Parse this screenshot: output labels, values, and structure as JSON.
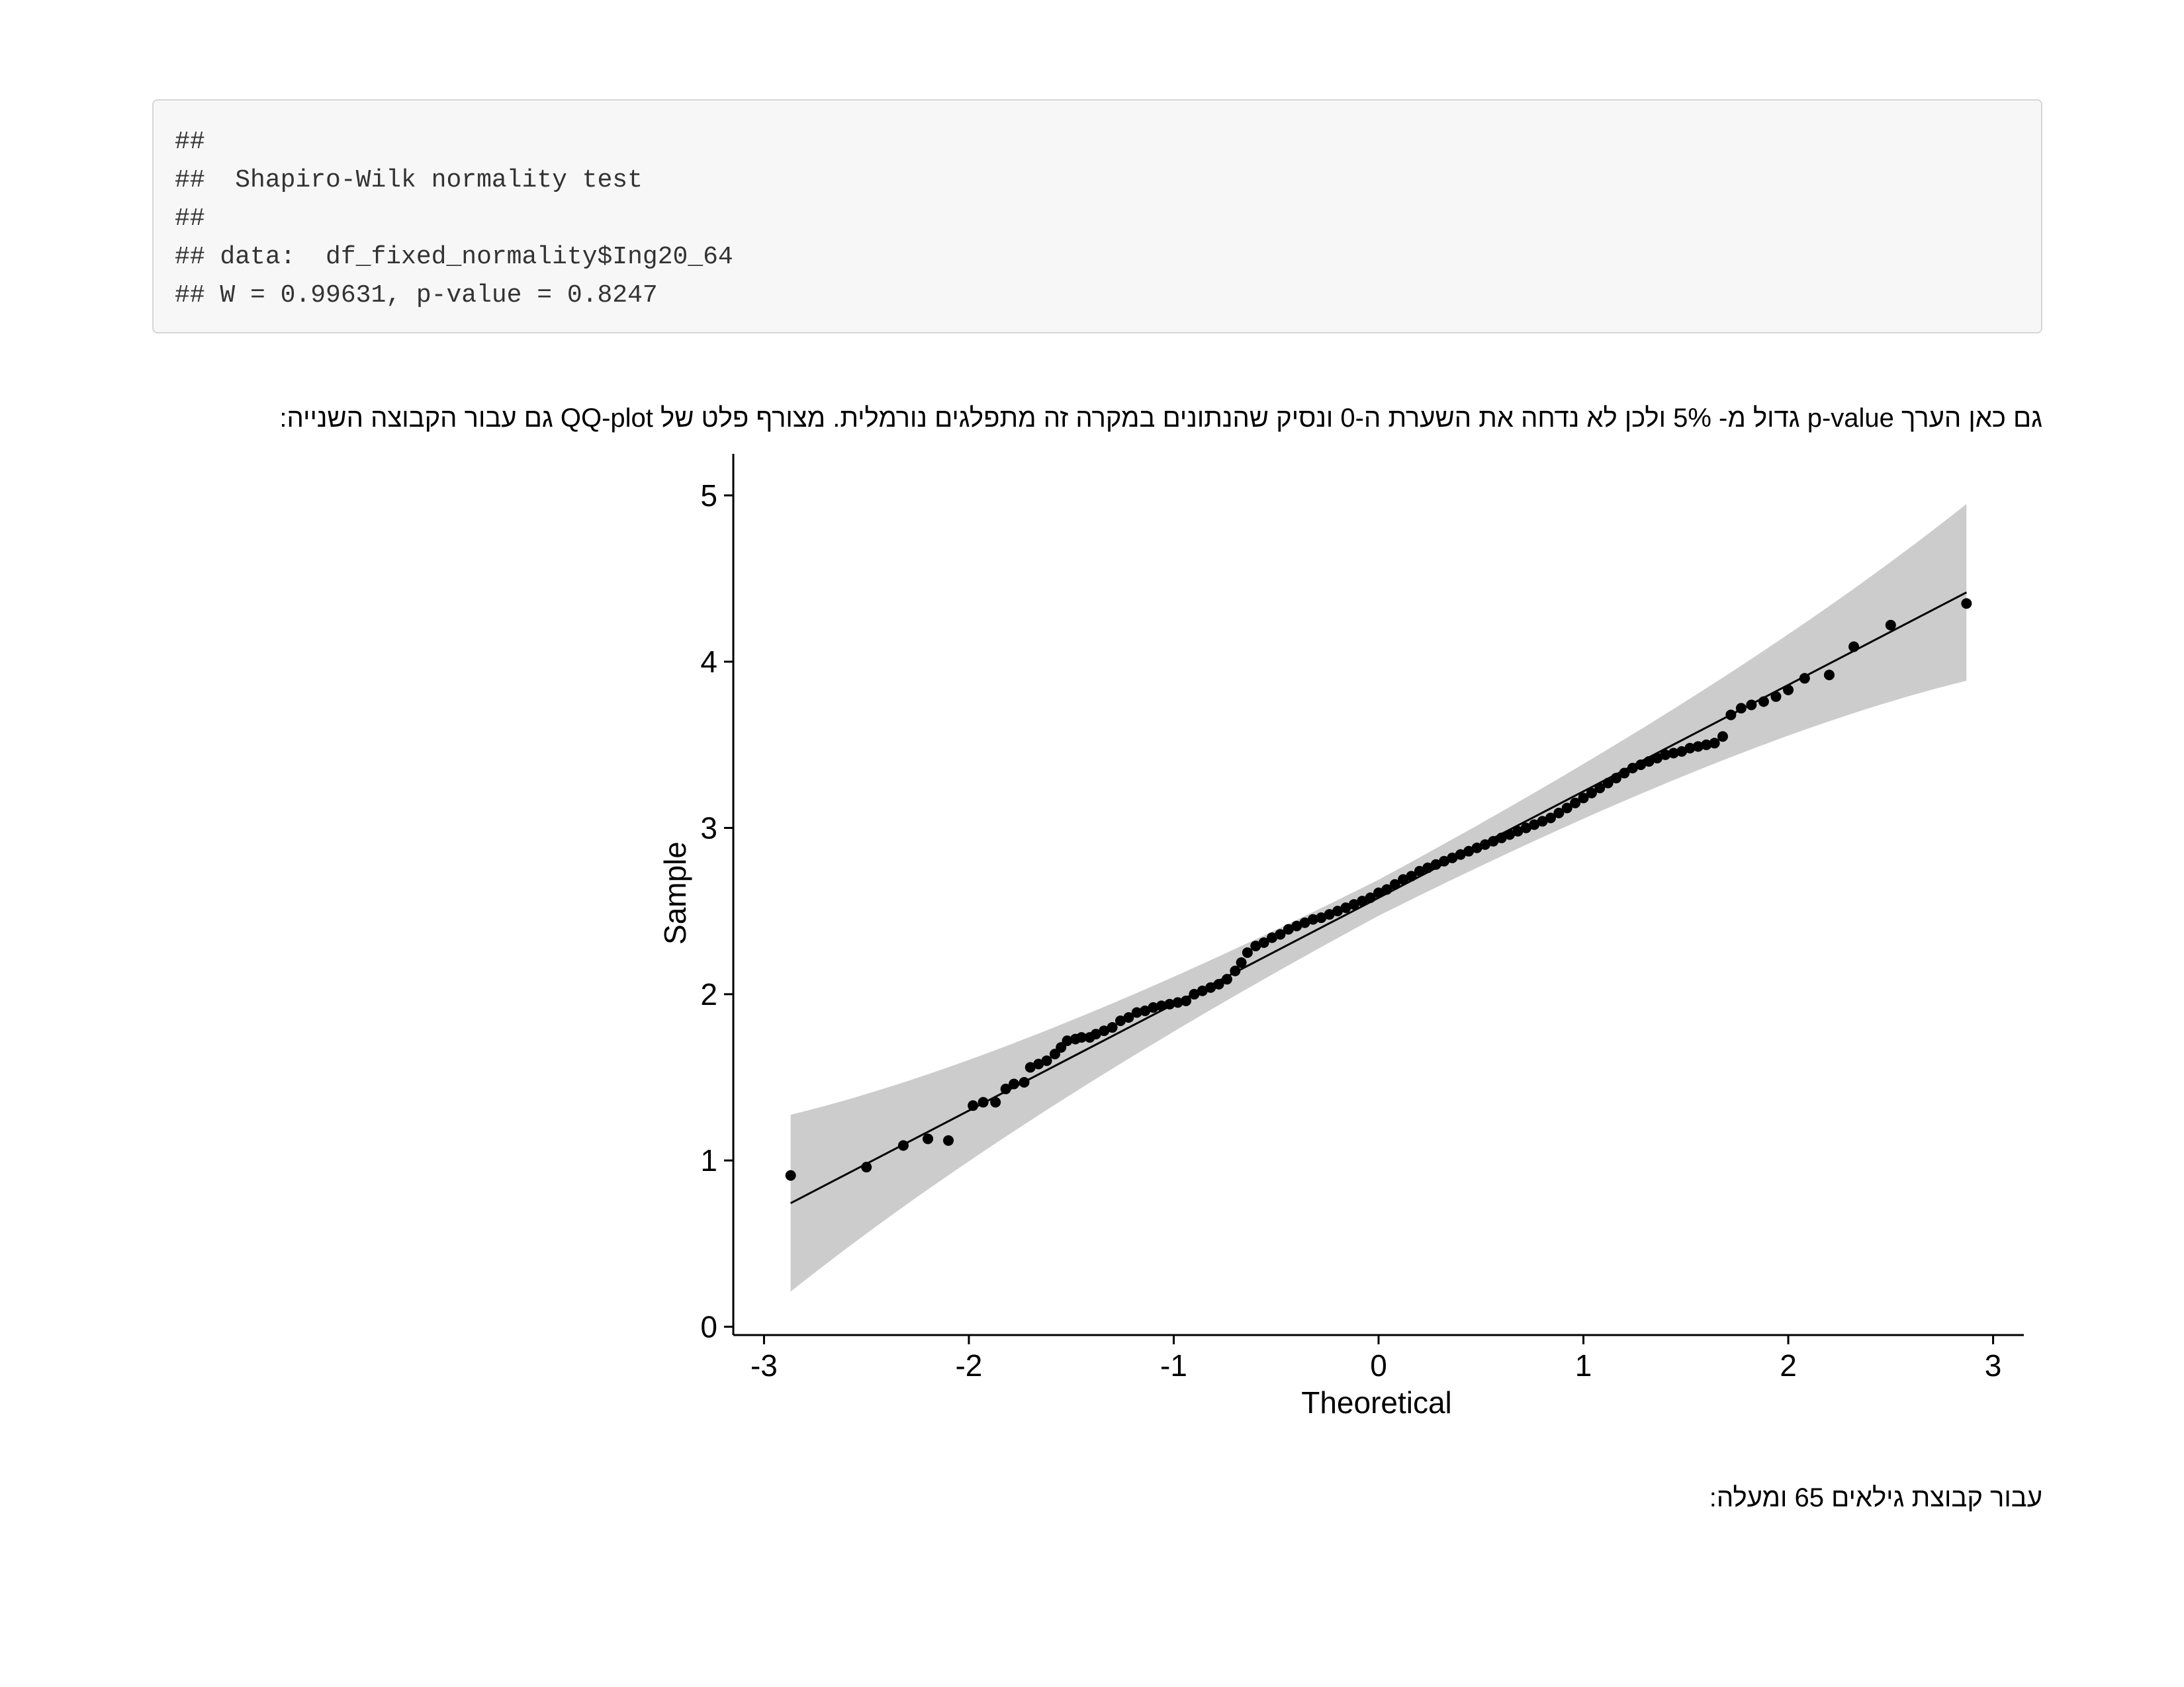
{
  "code_output": {
    "lines": [
      "##",
      "##  Shapiro-Wilk normality test",
      "##",
      "## data:  df_fixed_normality$Ing20_64",
      "## W = 0.99631, p-value = 0.8247"
    ]
  },
  "paragraphs": {
    "p1": "גם כאן הערך p-value גדול מ- 5% ולכן לא נדחה את השערת ה-0 ונסיק שהנתונים במקרה זה מתפלגים נורמלית. מצורף פלט של QQ-plot גם עבור הקבוצה השנייה:",
    "p2": "עבור קבוצת גילאים 65 ומעלה:"
  },
  "chart_data": {
    "type": "scatter",
    "subtype": "qq-plot",
    "title": "",
    "xlabel": "Theoretical",
    "ylabel": "Sample",
    "xlim": [
      -3.15,
      3.15
    ],
    "ylim": [
      -0.05,
      5.25
    ],
    "x_ticks": [
      "-3",
      "-2",
      "-1",
      "0",
      "1",
      "2",
      "3"
    ],
    "y_ticks": [
      "0",
      "1",
      "2",
      "3",
      "4",
      "5"
    ],
    "reference_line": {
      "intercept": 2.58,
      "slope": 0.64
    },
    "confidence_band_color": "#cccccc",
    "point_color": "#000000",
    "points": [
      [
        -2.87,
        0.91
      ],
      [
        -2.5,
        0.96
      ],
      [
        -2.32,
        1.09
      ],
      [
        -2.2,
        1.13
      ],
      [
        -2.1,
        1.12
      ],
      [
        -1.98,
        1.33
      ],
      [
        -1.93,
        1.35
      ],
      [
        -1.87,
        1.35
      ],
      [
        -1.82,
        1.43
      ],
      [
        -1.78,
        1.46
      ],
      [
        -1.73,
        1.47
      ],
      [
        -1.7,
        1.56
      ],
      [
        -1.66,
        1.58
      ],
      [
        -1.62,
        1.6
      ],
      [
        -1.58,
        1.64
      ],
      [
        -1.55,
        1.68
      ],
      [
        -1.52,
        1.72
      ],
      [
        -1.48,
        1.73
      ],
      [
        -1.45,
        1.74
      ],
      [
        -1.41,
        1.74
      ],
      [
        -1.38,
        1.76
      ],
      [
        -1.34,
        1.78
      ],
      [
        -1.3,
        1.8
      ],
      [
        -1.26,
        1.84
      ],
      [
        -1.22,
        1.86
      ],
      [
        -1.18,
        1.89
      ],
      [
        -1.14,
        1.9
      ],
      [
        -1.1,
        1.92
      ],
      [
        -1.06,
        1.93
      ],
      [
        -1.02,
        1.94
      ],
      [
        -0.98,
        1.95
      ],
      [
        -0.94,
        1.96
      ],
      [
        -0.9,
        2.0
      ],
      [
        -0.86,
        2.02
      ],
      [
        -0.82,
        2.04
      ],
      [
        -0.78,
        2.06
      ],
      [
        -0.74,
        2.09
      ],
      [
        -0.7,
        2.14
      ],
      [
        -0.67,
        2.19
      ],
      [
        -0.64,
        2.25
      ],
      [
        -0.6,
        2.29
      ],
      [
        -0.56,
        2.31
      ],
      [
        -0.52,
        2.34
      ],
      [
        -0.48,
        2.36
      ],
      [
        -0.44,
        2.39
      ],
      [
        -0.4,
        2.41
      ],
      [
        -0.36,
        2.43
      ],
      [
        -0.32,
        2.45
      ],
      [
        -0.28,
        2.46
      ],
      [
        -0.24,
        2.48
      ],
      [
        -0.2,
        2.5
      ],
      [
        -0.16,
        2.52
      ],
      [
        -0.12,
        2.54
      ],
      [
        -0.08,
        2.56
      ],
      [
        -0.04,
        2.58
      ],
      [
        0.0,
        2.61
      ],
      [
        0.04,
        2.63
      ],
      [
        0.08,
        2.66
      ],
      [
        0.12,
        2.69
      ],
      [
        0.16,
        2.71
      ],
      [
        0.2,
        2.74
      ],
      [
        0.24,
        2.76
      ],
      [
        0.28,
        2.78
      ],
      [
        0.32,
        2.8
      ],
      [
        0.36,
        2.82
      ],
      [
        0.4,
        2.84
      ],
      [
        0.44,
        2.86
      ],
      [
        0.48,
        2.88
      ],
      [
        0.52,
        2.9
      ],
      [
        0.56,
        2.92
      ],
      [
        0.6,
        2.94
      ],
      [
        0.64,
        2.96
      ],
      [
        0.68,
        2.98
      ],
      [
        0.72,
        3.0
      ],
      [
        0.76,
        3.02
      ],
      [
        0.8,
        3.04
      ],
      [
        0.84,
        3.06
      ],
      [
        0.88,
        3.09
      ],
      [
        0.92,
        3.12
      ],
      [
        0.96,
        3.15
      ],
      [
        1.0,
        3.18
      ],
      [
        1.04,
        3.21
      ],
      [
        1.08,
        3.24
      ],
      [
        1.12,
        3.27
      ],
      [
        1.16,
        3.3
      ],
      [
        1.2,
        3.33
      ],
      [
        1.24,
        3.36
      ],
      [
        1.28,
        3.38
      ],
      [
        1.32,
        3.4
      ],
      [
        1.36,
        3.42
      ],
      [
        1.4,
        3.44
      ],
      [
        1.44,
        3.45
      ],
      [
        1.48,
        3.46
      ],
      [
        1.52,
        3.48
      ],
      [
        1.56,
        3.49
      ],
      [
        1.6,
        3.5
      ],
      [
        1.64,
        3.51
      ],
      [
        1.68,
        3.55
      ],
      [
        1.72,
        3.68
      ],
      [
        1.77,
        3.72
      ],
      [
        1.82,
        3.74
      ],
      [
        1.88,
        3.76
      ],
      [
        1.94,
        3.79
      ],
      [
        2.0,
        3.83
      ],
      [
        2.08,
        3.9
      ],
      [
        2.2,
        3.92
      ],
      [
        2.32,
        4.09
      ],
      [
        2.5,
        4.22
      ],
      [
        2.87,
        4.35
      ]
    ]
  }
}
